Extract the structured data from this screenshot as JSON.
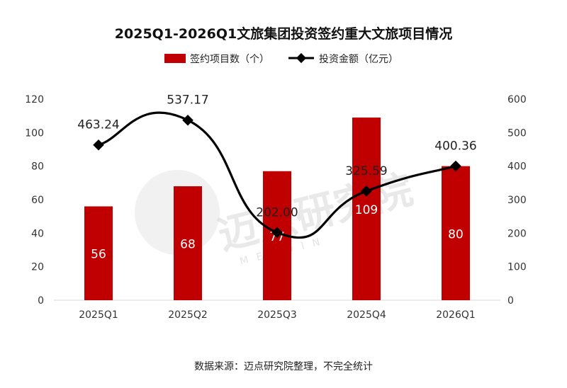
{
  "chart_data": {
    "type": "bar",
    "title": "2025Q1-2026Q1文旅集团投资签约重大文旅项目情况",
    "categories": [
      "2025Q1",
      "2025Q2",
      "2025Q3",
      "2025Q4",
      "2026Q1"
    ],
    "series": [
      {
        "name": "签约项目数（个）",
        "type": "bar",
        "axis": "left",
        "color": "#c00000",
        "values": [
          56,
          68,
          77,
          109,
          80
        ],
        "labels": [
          "56",
          "68",
          "77",
          "109",
          "80"
        ]
      },
      {
        "name": "投资金额（亿元）",
        "type": "line",
        "axis": "right",
        "color": "#000000",
        "values": [
          463.24,
          537.17,
          202.0,
          325.59,
          400.36
        ],
        "labels": [
          "463.24",
          "537.17",
          "202.00",
          "325.59",
          "400.36"
        ]
      }
    ],
    "y_left": {
      "ylim": [
        0,
        120
      ],
      "ticks": [
        "0",
        "20",
        "40",
        "60",
        "80",
        "100",
        "120"
      ]
    },
    "y_right": {
      "ylim": [
        0,
        600
      ],
      "ticks": [
        "0",
        "100",
        "200",
        "300",
        "400",
        "500",
        "600"
      ]
    },
    "legend_position": "top-center",
    "grid": false
  },
  "source_note": "数据来源：迈点研究院整理，不完全统计",
  "watermark": {
    "text": "迈点研究院",
    "sub": "MEADIN"
  }
}
